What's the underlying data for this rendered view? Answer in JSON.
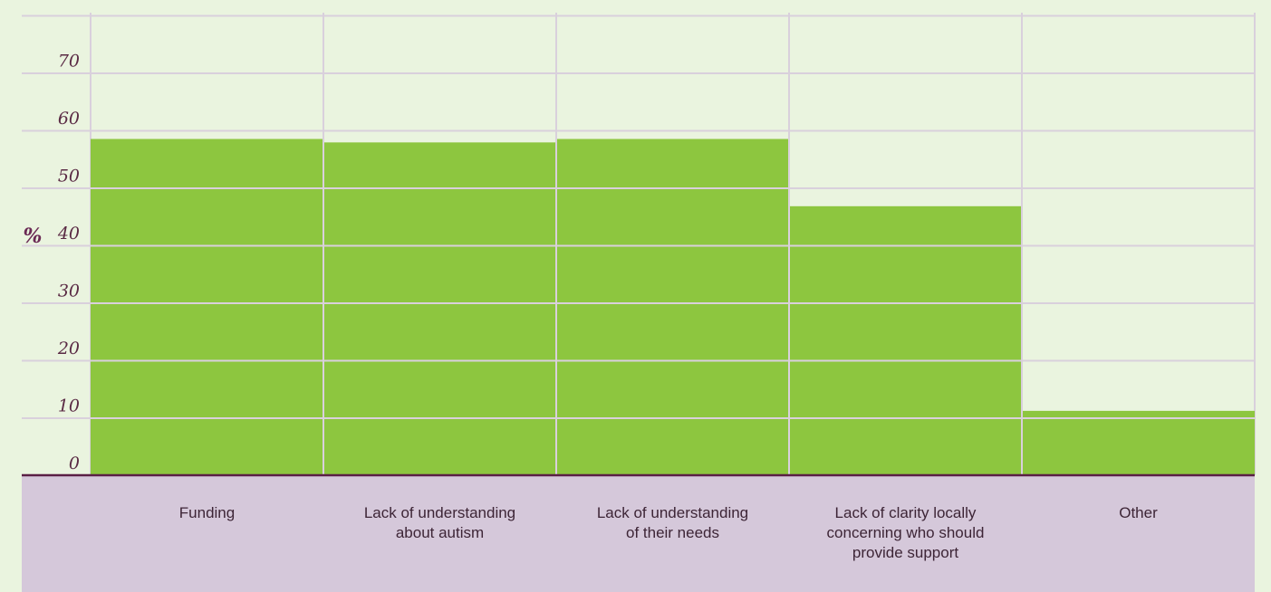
{
  "chart_data": {
    "type": "bar",
    "ylabel": "%",
    "ylim": [
      0,
      80
    ],
    "yticks": [
      0,
      10,
      20,
      30,
      40,
      50,
      60,
      70
    ],
    "grid": true,
    "categories": [
      "Funding",
      "Lack of understanding about autism",
      "Lack of understanding of their needs",
      "Lack of clarity locally concerning who should provide support",
      "Other"
    ],
    "category_lines": [
      [
        "Funding"
      ],
      [
        "Lack of understanding",
        "about autism"
      ],
      [
        "Lack of understanding",
        "of their needs"
      ],
      [
        "Lack of clarity locally",
        "concerning who should",
        "provide support"
      ],
      [
        "Other"
      ]
    ],
    "values": [
      58.5,
      57.9,
      58.5,
      46.8,
      11.2
    ],
    "colors": {
      "bar": "#8dc63f",
      "grid": "#d9d0dc",
      "baseline": "#5a1f45",
      "label_band": "#d5c8da"
    }
  }
}
